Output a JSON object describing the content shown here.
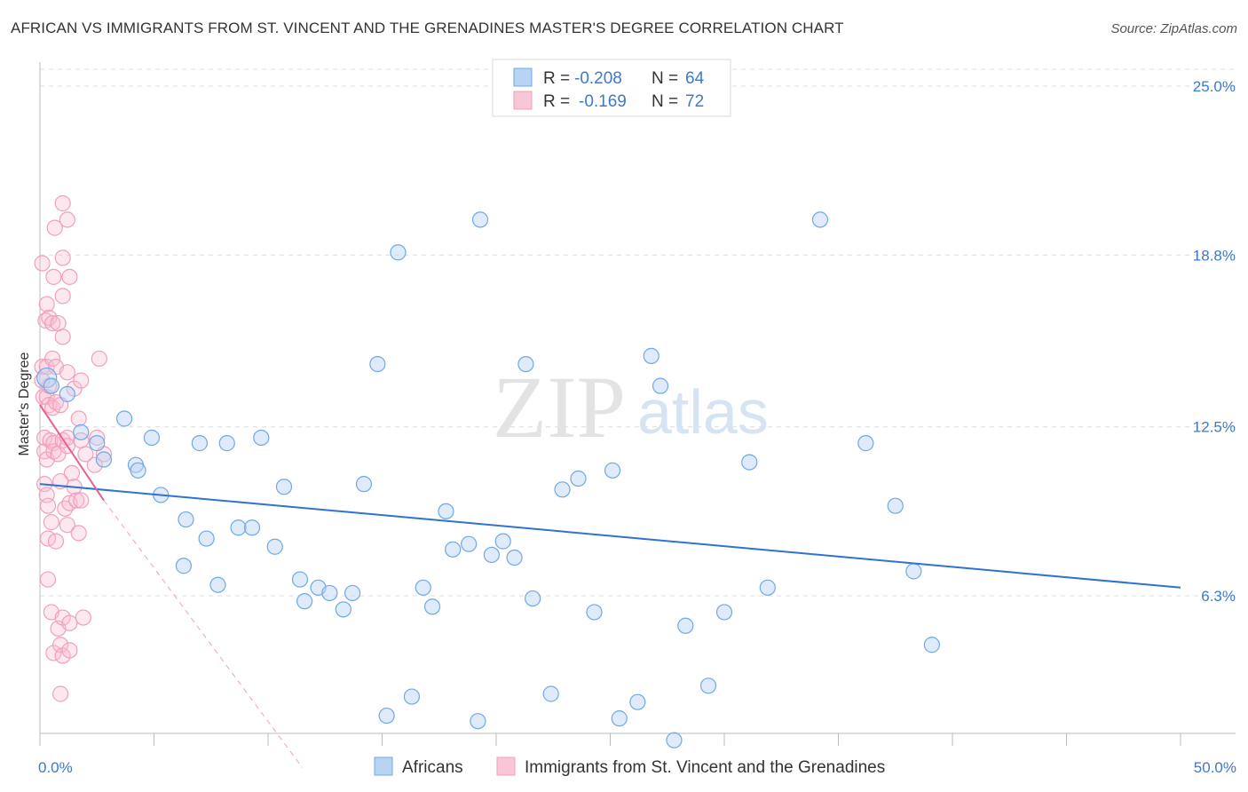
{
  "title": "AFRICAN VS IMMIGRANTS FROM ST. VINCENT AND THE GRENADINES MASTER'S DEGREE CORRELATION CHART",
  "source": "Source: ZipAtlas.com",
  "watermark": {
    "zip": "ZIP",
    "atlas": "atlas"
  },
  "legend": {
    "r_label": "R =",
    "n_label": "N =",
    "rows": [
      {
        "r": "-0.208",
        "n": "64"
      },
      {
        "r": "-0.169",
        "n": "72"
      }
    ]
  },
  "chart_data": {
    "type": "scatter",
    "ylabel": "Master's Degree",
    "xlim": [
      0,
      50
    ],
    "ylim": [
      0,
      26
    ],
    "x_tick_labels": [
      "0.0%",
      "50.0%"
    ],
    "y_ticks": [
      6.3,
      12.5,
      18.8,
      25.0
    ],
    "y_tick_labels": [
      "6.3%",
      "12.5%",
      "18.8%",
      "25.0%"
    ],
    "grid": true,
    "colors": {
      "africans": "#6fa8e8",
      "africans_line": "#2f72d0",
      "svg": "#f0a0bc",
      "svg_line": "#e8608f"
    },
    "series": [
      {
        "name": "Africans",
        "trend": {
          "x0": 0,
          "y0": 10.4,
          "x1": 50,
          "y1": 6.6
        },
        "points": [
          [
            0.3,
            14.3
          ],
          [
            0.5,
            14.0
          ],
          [
            1.2,
            13.7
          ],
          [
            1.8,
            12.3
          ],
          [
            2.5,
            11.9
          ],
          [
            2.8,
            11.3
          ],
          [
            3.7,
            12.8
          ],
          [
            4.2,
            11.1
          ],
          [
            4.3,
            10.9
          ],
          [
            4.9,
            12.1
          ],
          [
            5.3,
            10.0
          ],
          [
            6.3,
            7.4
          ],
          [
            6.4,
            9.1
          ],
          [
            7.0,
            11.9
          ],
          [
            7.3,
            8.4
          ],
          [
            7.8,
            6.7
          ],
          [
            8.2,
            11.9
          ],
          [
            8.7,
            8.8
          ],
          [
            9.3,
            8.8
          ],
          [
            9.7,
            12.1
          ],
          [
            10.3,
            8.1
          ],
          [
            10.7,
            10.3
          ],
          [
            11.4,
            6.9
          ],
          [
            11.6,
            6.1
          ],
          [
            12.2,
            6.6
          ],
          [
            12.7,
            6.4
          ],
          [
            13.3,
            5.8
          ],
          [
            13.7,
            6.4
          ],
          [
            14.2,
            10.4
          ],
          [
            14.8,
            14.8
          ],
          [
            15.2,
            1.9
          ],
          [
            15.7,
            18.9
          ],
          [
            16.3,
            2.6
          ],
          [
            16.8,
            6.6
          ],
          [
            17.2,
            5.9
          ],
          [
            17.8,
            9.4
          ],
          [
            18.1,
            8.0
          ],
          [
            18.8,
            8.2
          ],
          [
            19.2,
            1.7
          ],
          [
            19.3,
            20.1
          ],
          [
            19.8,
            7.8
          ],
          [
            20.3,
            8.3
          ],
          [
            20.8,
            7.7
          ],
          [
            21.3,
            14.8
          ],
          [
            21.6,
            6.2
          ],
          [
            22.4,
            2.7
          ],
          [
            22.9,
            10.2
          ],
          [
            23.6,
            10.6
          ],
          [
            24.3,
            5.7
          ],
          [
            25.1,
            10.9
          ],
          [
            25.4,
            1.8
          ],
          [
            26.2,
            2.4
          ],
          [
            26.8,
            15.1
          ],
          [
            27.2,
            14.0
          ],
          [
            27.8,
            1.0
          ],
          [
            28.3,
            5.2
          ],
          [
            29.3,
            3.0
          ],
          [
            30.0,
            5.7
          ],
          [
            31.1,
            11.2
          ],
          [
            31.9,
            6.6
          ],
          [
            34.2,
            20.1
          ],
          [
            36.2,
            11.9
          ],
          [
            37.5,
            9.6
          ],
          [
            38.3,
            7.2
          ],
          [
            39.1,
            4.5
          ]
        ]
      },
      {
        "name": "Immigrants from St. Vincent and the Grenadines",
        "trend_solid": {
          "x0": 0,
          "y0": 13.3,
          "x1": 2.8,
          "y1": 9.8
        },
        "trend_dashed": {
          "x0": 2.8,
          "y0": 9.8,
          "x1": 11.5,
          "y1": 0
        },
        "points": [
          [
            0.1,
            18.5
          ],
          [
            0.1,
            14.7
          ],
          [
            0.1,
            14.2
          ],
          [
            0.15,
            13.6
          ],
          [
            0.2,
            12.1
          ],
          [
            0.2,
            11.6
          ],
          [
            0.2,
            10.4
          ],
          [
            0.25,
            16.4
          ],
          [
            0.3,
            17.0
          ],
          [
            0.3,
            14.7
          ],
          [
            0.3,
            13.6
          ],
          [
            0.3,
            11.3
          ],
          [
            0.3,
            10.0
          ],
          [
            0.35,
            9.6
          ],
          [
            0.35,
            8.4
          ],
          [
            0.35,
            6.9
          ],
          [
            0.4,
            16.5
          ],
          [
            0.4,
            14.0
          ],
          [
            0.4,
            13.3
          ],
          [
            0.45,
            12.0
          ],
          [
            0.5,
            9.0
          ],
          [
            0.5,
            5.7
          ],
          [
            0.55,
            16.3
          ],
          [
            0.55,
            15.0
          ],
          [
            0.55,
            13.2
          ],
          [
            0.6,
            11.9
          ],
          [
            0.6,
            11.6
          ],
          [
            0.6,
            4.2
          ],
          [
            0.6,
            18.0
          ],
          [
            0.65,
            19.8
          ],
          [
            0.7,
            14.7
          ],
          [
            0.7,
            13.4
          ],
          [
            0.7,
            8.3
          ],
          [
            0.8,
            16.3
          ],
          [
            0.8,
            11.5
          ],
          [
            0.8,
            5.1
          ],
          [
            0.9,
            13.3
          ],
          [
            0.9,
            10.5
          ],
          [
            0.9,
            4.5
          ],
          [
            0.9,
            2.7
          ],
          [
            1.0,
            20.7
          ],
          [
            1.0,
            18.7
          ],
          [
            1.0,
            17.3
          ],
          [
            1.0,
            15.8
          ],
          [
            1.0,
            12.0
          ],
          [
            1.0,
            5.5
          ],
          [
            1.0,
            4.1
          ],
          [
            1.1,
            9.5
          ],
          [
            1.2,
            20.1
          ],
          [
            1.2,
            14.5
          ],
          [
            1.2,
            12.1
          ],
          [
            1.2,
            11.8
          ],
          [
            1.2,
            8.9
          ],
          [
            1.3,
            9.7
          ],
          [
            1.3,
            5.3
          ],
          [
            1.3,
            4.3
          ],
          [
            1.3,
            18.0
          ],
          [
            1.4,
            10.8
          ],
          [
            1.5,
            10.3
          ],
          [
            1.5,
            13.9
          ],
          [
            1.6,
            9.8
          ],
          [
            1.7,
            12.8
          ],
          [
            1.7,
            8.6
          ],
          [
            1.8,
            14.2
          ],
          [
            1.8,
            12.0
          ],
          [
            1.8,
            9.8
          ],
          [
            1.9,
            5.5
          ],
          [
            2.0,
            11.5
          ],
          [
            2.4,
            11.1
          ],
          [
            2.5,
            12.1
          ],
          [
            2.6,
            15.0
          ],
          [
            2.8,
            11.5
          ]
        ]
      }
    ]
  },
  "bottom_legend": [
    {
      "label": "Africans"
    },
    {
      "label": "Immigrants from St. Vincent and the Grenadines"
    }
  ]
}
